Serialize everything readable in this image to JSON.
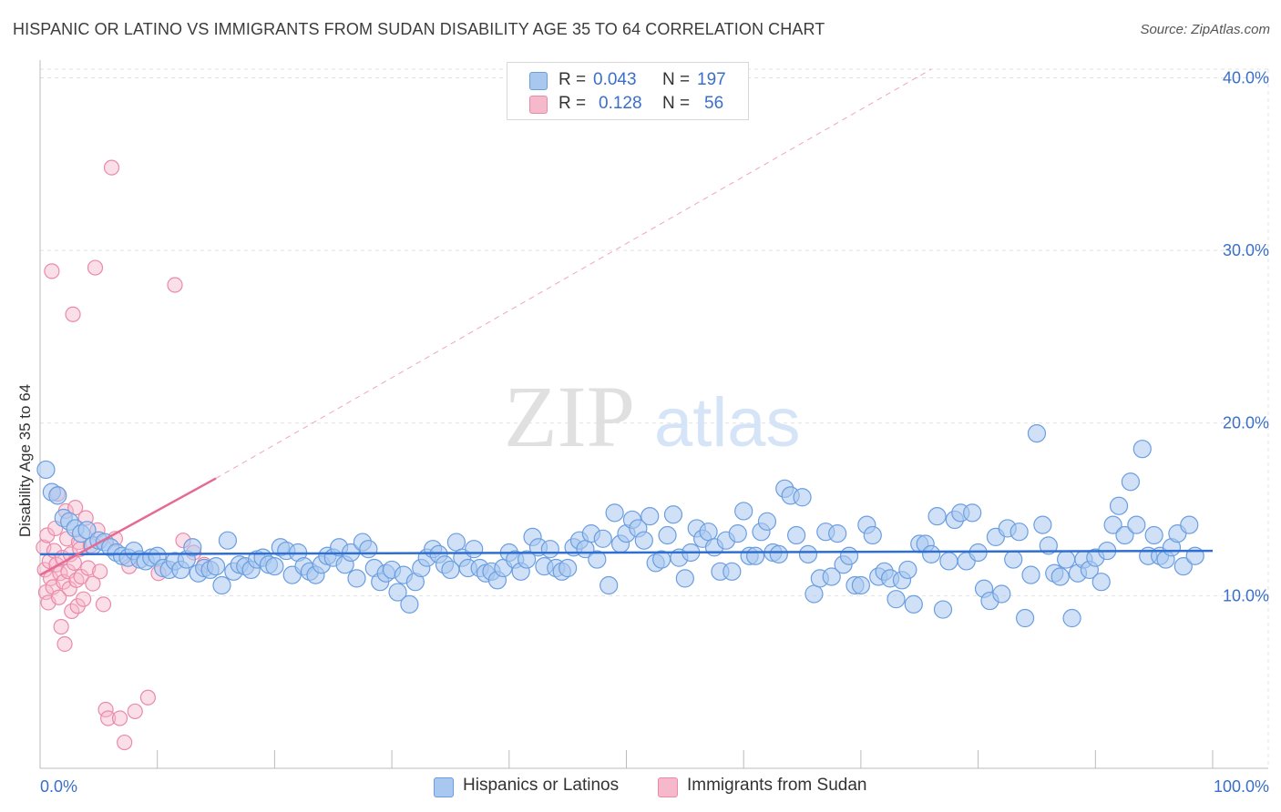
{
  "header": {
    "title": "HISPANIC OR LATINO VS IMMIGRANTS FROM SUDAN DISABILITY AGE 35 TO 64 CORRELATION CHART",
    "source": "Source: ZipAtlas.com"
  },
  "watermark": {
    "zip": "ZIP",
    "atlas": "atlas"
  },
  "legend": {
    "rows": [
      {
        "r_label": "R =",
        "r_value": "0.043",
        "n_label": "N =",
        "n_value": "197",
        "color": "#a9c8f0"
      },
      {
        "r_label": "R =",
        "r_value": "0.128",
        "n_label": "N =",
        "n_value": "56",
        "color": "#f6b8cb"
      }
    ]
  },
  "bottom_legend": {
    "series1": "Hispanics or Latinos",
    "series2": "Immigrants from Sudan"
  },
  "colors": {
    "blue_fill": "#a9c8f0",
    "blue_stroke": "#6a9ee0",
    "blue_line": "#2f6fd1",
    "pink_fill": "#f6b8cb",
    "pink_stroke": "#ea8aa8",
    "pink_line": "#e56a94",
    "axis_label": "#3a6fc9"
  },
  "chart_data": {
    "type": "scatter",
    "title": "HISPANIC OR LATINO VS IMMIGRANTS FROM SUDAN DISABILITY AGE 35 TO 64 CORRELATION CHART",
    "xlabel": "",
    "ylabel": "Disability Age 35 to 64",
    "xlim": [
      0,
      100
    ],
    "ylim": [
      0,
      40.5
    ],
    "x_tick_labels": [
      "0.0%",
      "100.0%"
    ],
    "y_ticks": [
      10,
      20,
      30,
      40
    ],
    "y_tick_labels": [
      "10.0%",
      "20.0%",
      "30.0%",
      "40.0%"
    ],
    "grid": true,
    "legend_position": "top-center",
    "series": [
      {
        "name": "Hispanics or Latinos",
        "color": "#a9c8f0",
        "trend": {
          "x": [
            0,
            100
          ],
          "y": [
            12.4,
            12.6
          ]
        },
        "points": [
          [
            0.5,
            17.3
          ],
          [
            1,
            16
          ],
          [
            1.5,
            15.8
          ],
          [
            2,
            14.5
          ],
          [
            2.5,
            14.3
          ],
          [
            3,
            13.9
          ],
          [
            3.5,
            13.6
          ],
          [
            4,
            13.8
          ],
          [
            4.5,
            12.9
          ],
          [
            5,
            13.2
          ],
          [
            5.5,
            13.1
          ],
          [
            6,
            12.8
          ],
          [
            6.5,
            12.5
          ],
          [
            7,
            12.3
          ],
          [
            7.5,
            12.2
          ],
          [
            8,
            12.6
          ],
          [
            8.5,
            12.1
          ],
          [
            9,
            12
          ],
          [
            9.5,
            12.2
          ],
          [
            10,
            12.3
          ],
          [
            10.5,
            11.6
          ],
          [
            11,
            11.5
          ],
          [
            11.5,
            12
          ],
          [
            12,
            11.5
          ],
          [
            12.5,
            12.1
          ],
          [
            13,
            12.8
          ],
          [
            13.5,
            11.3
          ],
          [
            14,
            11.6
          ],
          [
            14.5,
            11.5
          ],
          [
            15,
            11.7
          ],
          [
            15.5,
            10.6
          ],
          [
            16,
            13.2
          ],
          [
            16.5,
            11.4
          ],
          [
            17,
            11.8
          ],
          [
            17.5,
            11.7
          ],
          [
            18,
            11.5
          ],
          [
            18.5,
            12.1
          ],
          [
            19,
            12.2
          ],
          [
            19.5,
            11.8
          ],
          [
            20,
            11.7
          ],
          [
            20.5,
            12.8
          ],
          [
            21,
            12.6
          ],
          [
            21.5,
            11.2
          ],
          [
            22,
            12.5
          ],
          [
            22.5,
            11.7
          ],
          [
            23,
            11.4
          ],
          [
            23.5,
            11.2
          ],
          [
            24,
            11.8
          ],
          [
            24.5,
            12.3
          ],
          [
            25,
            12.2
          ],
          [
            25.5,
            12.8
          ],
          [
            26,
            11.8
          ],
          [
            26.5,
            12.5
          ],
          [
            27,
            11
          ],
          [
            27.5,
            13.1
          ],
          [
            28,
            12.7
          ],
          [
            28.5,
            11.6
          ],
          [
            29,
            10.8
          ],
          [
            29.5,
            11.3
          ],
          [
            30,
            11.5
          ],
          [
            30.5,
            10.2
          ],
          [
            31,
            11.2
          ],
          [
            31.5,
            9.5
          ],
          [
            32,
            10.8
          ],
          [
            32.5,
            11.6
          ],
          [
            33,
            12.2
          ],
          [
            33.5,
            12.7
          ],
          [
            34,
            12.4
          ],
          [
            34.5,
            11.8
          ],
          [
            35,
            11.5
          ],
          [
            35.5,
            13.1
          ],
          [
            36,
            12.2
          ],
          [
            36.5,
            11.6
          ],
          [
            37,
            12.7
          ],
          [
            37.5,
            11.6
          ],
          [
            38,
            11.3
          ],
          [
            38.5,
            11.4
          ],
          [
            39,
            10.9
          ],
          [
            39.5,
            11.6
          ],
          [
            40,
            12.5
          ],
          [
            40.5,
            12.1
          ],
          [
            41,
            11.4
          ],
          [
            41.5,
            12.1
          ],
          [
            42,
            13.4
          ],
          [
            42.5,
            12.8
          ],
          [
            43,
            11.7
          ],
          [
            43.5,
            12.7
          ],
          [
            44,
            11.6
          ],
          [
            44.5,
            11.4
          ],
          [
            45,
            11.6
          ],
          [
            45.5,
            12.8
          ],
          [
            46,
            13.2
          ],
          [
            46.5,
            12.7
          ],
          [
            47,
            13.6
          ],
          [
            47.5,
            12.1
          ],
          [
            48,
            13.3
          ],
          [
            48.5,
            10.6
          ],
          [
            49,
            14.8
          ],
          [
            49.5,
            13
          ],
          [
            50,
            13.6
          ],
          [
            50.5,
            14.4
          ],
          [
            51,
            13.9
          ],
          [
            51.5,
            13.2
          ],
          [
            52,
            14.6
          ],
          [
            52.5,
            11.9
          ],
          [
            53,
            12.1
          ],
          [
            53.5,
            13.5
          ],
          [
            54,
            14.7
          ],
          [
            54.5,
            12.2
          ],
          [
            55,
            11
          ],
          [
            55.5,
            12.5
          ],
          [
            56,
            13.9
          ],
          [
            56.5,
            13.3
          ],
          [
            57,
            13.7
          ],
          [
            57.5,
            12.8
          ],
          [
            58,
            11.4
          ],
          [
            58.5,
            13.2
          ],
          [
            59,
            11.4
          ],
          [
            59.5,
            13.6
          ],
          [
            60,
            14.9
          ],
          [
            60.5,
            12.3
          ],
          [
            61,
            12.3
          ],
          [
            61.5,
            13.7
          ],
          [
            62,
            14.3
          ],
          [
            62.5,
            12.5
          ],
          [
            63,
            12.4
          ],
          [
            63.5,
            16.2
          ],
          [
            64,
            15.8
          ],
          [
            64.5,
            13.5
          ],
          [
            65,
            15.7
          ],
          [
            65.5,
            12.4
          ],
          [
            66,
            10.1
          ],
          [
            66.5,
            11
          ],
          [
            67,
            13.7
          ],
          [
            67.5,
            11.1
          ],
          [
            68,
            13.6
          ],
          [
            68.5,
            11.8
          ],
          [
            69,
            12.3
          ],
          [
            69.5,
            10.6
          ],
          [
            70,
            10.6
          ],
          [
            70.5,
            14.1
          ],
          [
            71,
            13.5
          ],
          [
            71.5,
            11.1
          ],
          [
            72,
            11.4
          ],
          [
            72.5,
            11
          ],
          [
            73,
            9.8
          ],
          [
            73.5,
            10.9
          ],
          [
            74,
            11.5
          ],
          [
            74.5,
            9.5
          ],
          [
            75,
            13
          ],
          [
            75.5,
            13
          ],
          [
            76,
            12.4
          ],
          [
            76.5,
            14.6
          ],
          [
            77,
            9.2
          ],
          [
            77.5,
            12
          ],
          [
            78,
            14.4
          ],
          [
            78.5,
            14.8
          ],
          [
            79,
            12
          ],
          [
            79.5,
            14.8
          ],
          [
            80,
            12.5
          ],
          [
            80.5,
            10.4
          ],
          [
            81,
            9.7
          ],
          [
            81.5,
            13.4
          ],
          [
            82,
            10.1
          ],
          [
            82.5,
            13.9
          ],
          [
            83,
            12.1
          ],
          [
            83.5,
            13.7
          ],
          [
            84,
            8.7
          ],
          [
            84.5,
            11.2
          ],
          [
            85,
            19.4
          ],
          [
            85.5,
            14.1
          ],
          [
            86,
            12.9
          ],
          [
            86.5,
            11.3
          ],
          [
            87,
            11.1
          ],
          [
            87.5,
            12.1
          ],
          [
            88,
            8.7
          ],
          [
            88.5,
            11.3
          ],
          [
            89,
            12.1
          ],
          [
            89.5,
            11.5
          ],
          [
            90,
            12.2
          ],
          [
            90.5,
            10.8
          ],
          [
            91,
            12.6
          ],
          [
            91.5,
            14.1
          ],
          [
            92,
            15.2
          ],
          [
            92.5,
            13.5
          ],
          [
            93,
            16.6
          ],
          [
            93.5,
            14.1
          ],
          [
            94,
            18.5
          ],
          [
            94.5,
            12.3
          ],
          [
            95,
            13.5
          ],
          [
            95.5,
            12.3
          ],
          [
            96,
            12.1
          ],
          [
            96.5,
            12.8
          ],
          [
            97,
            13.6
          ],
          [
            97.5,
            11.7
          ],
          [
            98,
            14.1
          ],
          [
            98.5,
            12.3
          ]
        ]
      },
      {
        "name": "Immigrants from Sudan",
        "color": "#f6b8cb",
        "trend": {
          "x": [
            0,
            15
          ],
          "y": [
            11.2,
            16.8
          ],
          "dashed_extension": {
            "x": [
              15,
              76
            ],
            "y": [
              16.8,
              40.5
            ]
          }
        },
        "points": [
          [
            0.3,
            12.8
          ],
          [
            0.4,
            11.5
          ],
          [
            0.5,
            10.2
          ],
          [
            0.6,
            13.5
          ],
          [
            0.7,
            9.6
          ],
          [
            0.8,
            12
          ],
          [
            0.9,
            11
          ],
          [
            1,
            28.8
          ],
          [
            1.1,
            10.5
          ],
          [
            1.2,
            12.6
          ],
          [
            1.3,
            13.9
          ],
          [
            1.4,
            11.8
          ],
          [
            1.5,
            15.9
          ],
          [
            1.6,
            9.9
          ],
          [
            1.7,
            11.3
          ],
          [
            1.8,
            8.2
          ],
          [
            1.9,
            12.2
          ],
          [
            2,
            10.8
          ],
          [
            2.1,
            7.2
          ],
          [
            2.2,
            14.9
          ],
          [
            2.3,
            13.3
          ],
          [
            2.4,
            11.4
          ],
          [
            2.5,
            10.4
          ],
          [
            2.6,
            12.4
          ],
          [
            2.7,
            9.1
          ],
          [
            2.8,
            26.3
          ],
          [
            2.9,
            11.9
          ],
          [
            3,
            15.1
          ],
          [
            3.1,
            10.9
          ],
          [
            3.2,
            9.4
          ],
          [
            3.3,
            13.1
          ],
          [
            3.4,
            12.7
          ],
          [
            3.5,
            11.1
          ],
          [
            3.7,
            9.8
          ],
          [
            3.9,
            14.5
          ],
          [
            4.1,
            11.6
          ],
          [
            4.3,
            12.9
          ],
          [
            4.5,
            10.7
          ],
          [
            4.7,
            29
          ],
          [
            4.9,
            13.8
          ],
          [
            5.1,
            11.4
          ],
          [
            5.4,
            9.5
          ],
          [
            5.6,
            3.4
          ],
          [
            5.8,
            2.9
          ],
          [
            6.1,
            34.8
          ],
          [
            6.4,
            13.3
          ],
          [
            6.8,
            2.9
          ],
          [
            7.2,
            1.5
          ],
          [
            7.6,
            11.7
          ],
          [
            8.1,
            3.3
          ],
          [
            9.2,
            4.1
          ],
          [
            10.1,
            11.3
          ],
          [
            11.5,
            28
          ],
          [
            12.2,
            13.2
          ],
          [
            13.1,
            12.5
          ],
          [
            14,
            11.8
          ]
        ]
      }
    ]
  }
}
